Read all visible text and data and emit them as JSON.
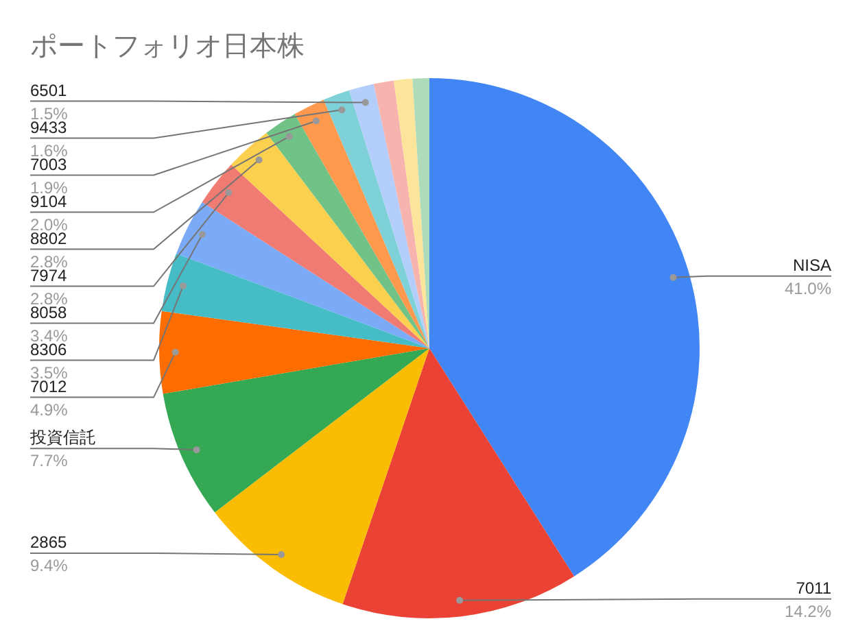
{
  "chart_data": {
    "type": "pie",
    "title": "ポートフォリオ日本株",
    "categories": [
      "NISA",
      "7011",
      "2865",
      "投資信託",
      "7012",
      "8306",
      "8058",
      "7974",
      "8802",
      "9104",
      "7003",
      "9433",
      "6501",
      null,
      null,
      null
    ],
    "values": [
      41.0,
      14.2,
      9.4,
      7.7,
      4.9,
      3.5,
      3.4,
      2.8,
      2.8,
      2.0,
      1.9,
      1.6,
      1.5,
      1.2,
      1.1,
      1.0
    ],
    "colors": [
      "#4285f4",
      "#ea4335",
      "#fbbc04",
      "#34a853",
      "#ff6d01",
      "#46bdc6",
      "#7baaf7",
      "#f07b72",
      "#fcd04f",
      "#71c287",
      "#ff994d",
      "#7ed1d7",
      "#b3cefb",
      "#f7b4ae",
      "#fde49b",
      "#aedcba"
    ],
    "value_labels": [
      "41.0%",
      "14.2%",
      "9.4%",
      "7.7%",
      "4.9%",
      "3.5%",
      "3.4%",
      "2.8%",
      "2.8%",
      "2.0%",
      "1.9%",
      "1.6%",
      "1.5%",
      null,
      null,
      null
    ]
  }
}
